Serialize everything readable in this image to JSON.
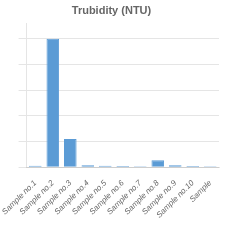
{
  "chart_data": {
    "type": "bar",
    "title": "Trubidity (NTU)",
    "categories": [
      "Sample no.1",
      "Sample no.2",
      "Sample no.3",
      "Sample no.4",
      "Sample no.5",
      "Sample no.6",
      "Sample no.7",
      "Sample no.8",
      "Sample no.9",
      "Sample no.10",
      "Sample"
    ],
    "values": [
      1.2,
      100,
      22,
      1.5,
      1.2,
      1.0,
      0.8,
      5.5,
      1.5,
      1.0,
      0.8
    ],
    "color": "#5b9bd5",
    "ylim": [
      0,
      112
    ],
    "yticks": [
      0,
      20,
      40,
      60,
      80,
      100
    ],
    "grid": true,
    "tick_labels": "x"
  }
}
